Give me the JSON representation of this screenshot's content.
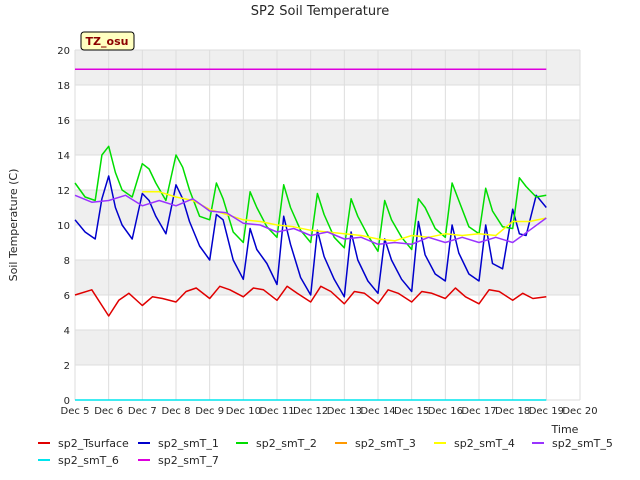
{
  "chart_data": {
    "type": "line",
    "title": "SP2 Soil Temperature",
    "ylabel": "Soil Temperature (C)",
    "xlabel": "Time",
    "badge": "TZ_osu",
    "ylim": [
      0,
      20
    ],
    "xlim": [
      5,
      20
    ],
    "yticks": [
      0,
      2,
      4,
      6,
      8,
      10,
      12,
      14,
      16,
      18,
      20
    ],
    "xticks": [
      5,
      6,
      7,
      8,
      9,
      10,
      11,
      12,
      13,
      14,
      15,
      16,
      17,
      18,
      19,
      20
    ],
    "xtick_labels": [
      "Dec 5",
      "Dec 6",
      "Dec 7",
      "Dec 8",
      "Dec 9",
      "Dec 10",
      "Dec 11",
      "Dec 12",
      "Dec 13",
      "Dec 14",
      "Dec 15",
      "Dec 16",
      "Dec 17",
      "Dec 18",
      "Dec 19",
      "Dec 20"
    ],
    "grid": true,
    "legend_placement": "bottom",
    "series": [
      {
        "name": "sp2_Tsurface",
        "color": "#e00000",
        "x": [
          5.0,
          5.5,
          6.0,
          6.3,
          6.6,
          7.0,
          7.3,
          7.6,
          8.0,
          8.3,
          8.6,
          9.0,
          9.3,
          9.6,
          10.0,
          10.3,
          10.6,
          11.0,
          11.3,
          11.6,
          12.0,
          12.3,
          12.6,
          13.0,
          13.3,
          13.6,
          14.0,
          14.3,
          14.6,
          15.0,
          15.3,
          15.6,
          16.0,
          16.3,
          16.6,
          17.0,
          17.3,
          17.6,
          18.0,
          18.3,
          18.6,
          19.0
        ],
        "y": [
          6.0,
          6.3,
          4.8,
          5.7,
          6.1,
          5.4,
          5.9,
          5.8,
          5.6,
          6.2,
          6.4,
          5.8,
          6.5,
          6.3,
          5.9,
          6.4,
          6.3,
          5.7,
          6.5,
          6.1,
          5.6,
          6.5,
          6.2,
          5.5,
          6.2,
          6.1,
          5.5,
          6.3,
          6.1,
          5.6,
          6.2,
          6.1,
          5.8,
          6.4,
          5.9,
          5.5,
          6.3,
          6.2,
          5.7,
          6.1,
          5.8,
          5.9
        ]
      },
      {
        "name": "sp2_smT_1",
        "color": "#0000cc",
        "x": [
          5.0,
          5.3,
          5.6,
          5.8,
          6.0,
          6.2,
          6.4,
          6.7,
          7.0,
          7.2,
          7.4,
          7.7,
          8.0,
          8.2,
          8.4,
          8.7,
          9.0,
          9.2,
          9.4,
          9.7,
          10.0,
          10.2,
          10.4,
          10.7,
          11.0,
          11.2,
          11.4,
          11.7,
          12.0,
          12.2,
          12.4,
          12.7,
          13.0,
          13.2,
          13.4,
          13.7,
          14.0,
          14.2,
          14.4,
          14.7,
          15.0,
          15.2,
          15.4,
          15.7,
          16.0,
          16.2,
          16.4,
          16.7,
          17.0,
          17.2,
          17.4,
          17.7,
          18.0,
          18.2,
          18.4,
          18.7,
          19.0
        ],
        "y": [
          10.3,
          9.6,
          9.2,
          11.5,
          12.8,
          11.0,
          10.0,
          9.2,
          11.8,
          11.4,
          10.5,
          9.5,
          12.3,
          11.5,
          10.2,
          8.8,
          8.0,
          10.6,
          10.3,
          8.0,
          6.9,
          9.8,
          8.6,
          7.8,
          6.6,
          10.5,
          8.9,
          7.0,
          6.0,
          9.7,
          8.2,
          6.9,
          5.9,
          9.6,
          8.0,
          6.8,
          6.1,
          9.2,
          8.0,
          6.9,
          6.2,
          10.2,
          8.3,
          7.2,
          6.8,
          10.0,
          8.4,
          7.2,
          6.8,
          10.0,
          7.8,
          7.5,
          10.9,
          9.5,
          9.4,
          11.7,
          11.0
        ]
      },
      {
        "name": "sp2_smT_2",
        "color": "#00dd00",
        "x": [
          5.0,
          5.3,
          5.6,
          5.8,
          6.0,
          6.2,
          6.4,
          6.7,
          7.0,
          7.2,
          7.4,
          7.7,
          8.0,
          8.2,
          8.4,
          8.7,
          9.0,
          9.2,
          9.4,
          9.7,
          10.0,
          10.2,
          10.4,
          10.7,
          11.0,
          11.2,
          11.4,
          11.7,
          12.0,
          12.2,
          12.4,
          12.7,
          13.0,
          13.2,
          13.4,
          13.7,
          14.0,
          14.2,
          14.4,
          14.7,
          15.0,
          15.2,
          15.4,
          15.7,
          16.0,
          16.2,
          16.4,
          16.7,
          17.0,
          17.2,
          17.4,
          17.7,
          18.0,
          18.2,
          18.4,
          18.7,
          19.0
        ],
        "y": [
          12.4,
          11.6,
          11.4,
          14.0,
          14.5,
          13.0,
          12.0,
          11.6,
          13.5,
          13.2,
          12.4,
          11.4,
          14.0,
          13.3,
          12.0,
          10.5,
          10.3,
          12.4,
          11.5,
          9.6,
          9.0,
          11.9,
          11.0,
          9.9,
          9.3,
          12.3,
          11.0,
          9.7,
          9.0,
          11.8,
          10.6,
          9.3,
          8.7,
          11.5,
          10.5,
          9.4,
          8.5,
          11.4,
          10.3,
          9.3,
          8.6,
          11.5,
          11.0,
          9.8,
          9.3,
          12.4,
          11.4,
          9.9,
          9.5,
          12.1,
          10.8,
          9.9,
          9.8,
          12.7,
          12.2,
          11.6,
          11.7
        ]
      },
      {
        "name": "sp2_smT_3",
        "color": "#ff9900",
        "x": [],
        "y": []
      },
      {
        "name": "sp2_smT_4",
        "color": "#ffff00",
        "x": [
          7.0,
          7.5,
          8.0,
          8.5,
          9.0,
          9.5,
          10.0,
          10.5,
          11.0,
          11.5,
          12.0,
          12.5,
          13.0,
          13.5,
          14.0,
          14.5,
          15.0,
          15.5,
          16.0,
          16.5,
          17.0,
          17.5,
          18.0,
          18.5,
          19.0
        ],
        "y": [
          11.9,
          11.9,
          11.6,
          11.4,
          10.9,
          10.6,
          10.3,
          10.2,
          10.0,
          9.9,
          9.7,
          9.6,
          9.5,
          9.4,
          9.2,
          9.1,
          9.4,
          9.3,
          9.5,
          9.4,
          9.5,
          9.4,
          10.2,
          10.2,
          10.4
        ]
      },
      {
        "name": "sp2_smT_5",
        "color": "#9933ff",
        "x": [
          5.0,
          5.5,
          6.0,
          6.5,
          7.0,
          7.5,
          8.0,
          8.5,
          9.0,
          9.5,
          10.0,
          10.5,
          11.0,
          11.5,
          12.0,
          12.5,
          13.0,
          13.5,
          14.0,
          14.5,
          15.0,
          15.5,
          16.0,
          16.5,
          17.0,
          17.5,
          18.0,
          18.5,
          19.0
        ],
        "y": [
          11.7,
          11.3,
          11.4,
          11.7,
          11.1,
          11.4,
          11.1,
          11.5,
          10.8,
          10.7,
          10.1,
          10.0,
          9.6,
          9.8,
          9.4,
          9.6,
          9.2,
          9.3,
          8.9,
          9.0,
          8.9,
          9.3,
          9.0,
          9.3,
          9.0,
          9.3,
          9.0,
          9.7,
          10.4
        ]
      },
      {
        "name": "sp2_smT_6",
        "color": "#00e5ee",
        "x": [
          5.0,
          19.0
        ],
        "y": [
          0.0,
          0.0
        ]
      },
      {
        "name": "sp2_smT_7",
        "color": "#dd00dd",
        "x": [
          5.0,
          19.0
        ],
        "y": [
          18.9,
          18.9
        ]
      }
    ]
  }
}
